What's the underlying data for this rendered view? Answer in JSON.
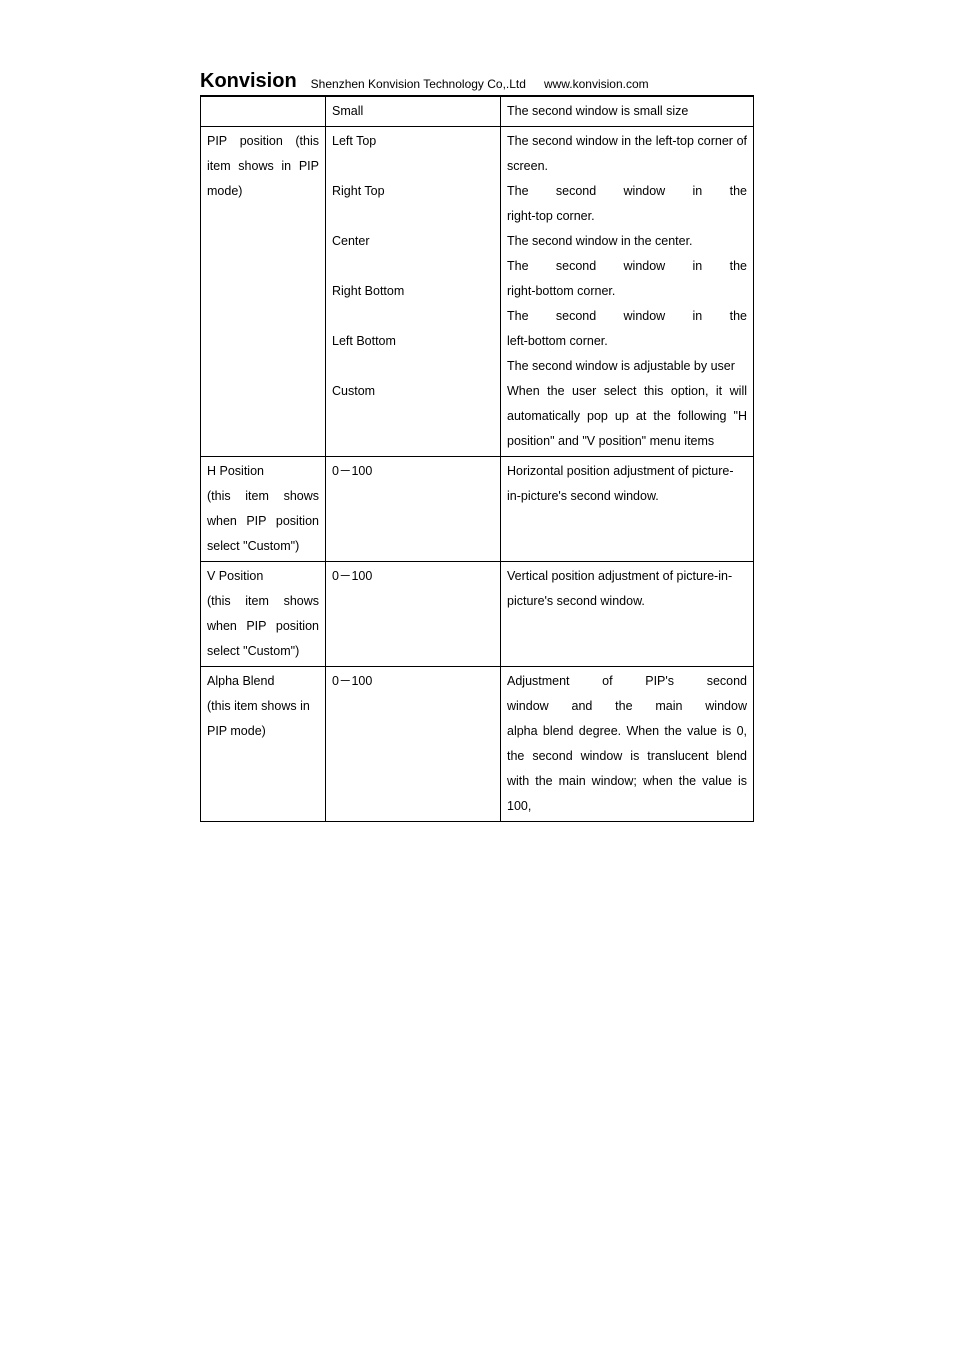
{
  "header": {
    "logo": "Konvision",
    "company": "Shenzhen Konvision Technology Co,.Ltd",
    "url": "www.konvision.com"
  },
  "table": {
    "row1": {
      "col1": "",
      "col2": "Small",
      "col3": "The second window is small size"
    },
    "row2": {
      "col1_l1_w1": "PIP",
      "col1_l1_w2": "position",
      "col1_l1_w3": "(this",
      "col1_l2": "item shows in PIP",
      "col1_l3": "mode)",
      "col2_v1": "Left Top",
      "col2_v2": "Right Top",
      "col2_v3": "Center",
      "col2_v4": "Right Bottom",
      "col2_v5": "Left Bottom",
      "col2_v6": "Custom",
      "col3": "The second window in the left-top corner of screen.\nThe second window in the right-top corner.\nThe second window in the center.\nThe second window in the right-bottom corner.\nThe second window in the left-bottom corner.\nThe second window is adjustable by user\nWhen the user select this option, it will automatically pop up at the following \"H position\" and \"V position\" menu items"
    },
    "row3": {
      "col1_l1": "H Position",
      "col1_l2_w1": "(this",
      "col1_l2_w2": "item",
      "col1_l2_w3": "shows",
      "col1_l3": "when PIP position",
      "col1_l4": "select \"Custom\")",
      "col2": "0－100",
      "col3": "Horizontal position adjustment of picture-in-picture's second window."
    },
    "row4": {
      "col1_l1": "V Position",
      "col1_l2_w1": "(this",
      "col1_l2_w2": "item",
      "col1_l2_w3": "shows",
      "col1_l3": "when PIP position",
      "col1_l4": "select \"Custom\")",
      "col2": "0－100",
      "col3": "Vertical position adjustment of picture-in-picture's second window."
    },
    "row5": {
      "col1_l1": "Alpha Blend",
      "col1_l2": "(this item shows in",
      "col1_l3": "PIP mode)",
      "col2": "0－100",
      "col3": "Adjustment of PIP's second window and the main window alpha blend degree. When the value is 0, the second window is translucent blend with the main window; when the value is 100,"
    }
  }
}
